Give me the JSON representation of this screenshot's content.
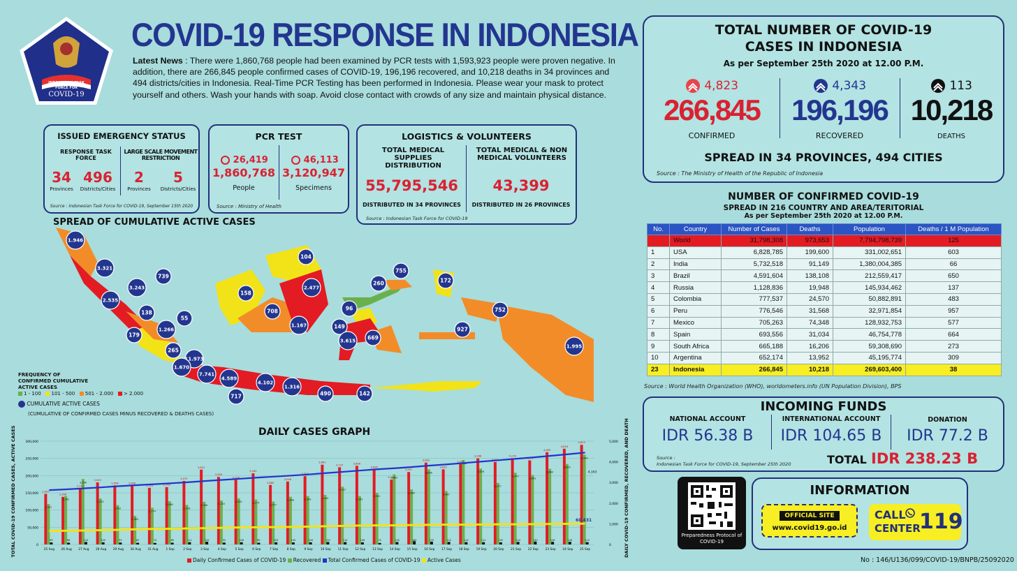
{
  "header": {
    "title": "COVID-19 RESPONSE IN INDONESIA",
    "logo_text_1": "INDONESIAN TASK",
    "logo_text_2": "FORCE FOR",
    "logo_text_3": "COVID-19"
  },
  "news": {
    "lead": "Latest News",
    "text": " : There were 1,860,768 people had been examined by PCR tests with 1,593,923 people were proven negative. In addition, there are 266,845 people confirmed cases of COVID-19, 196,196 recovered, and 10,218 deaths in 34 provinces and 494 districts/cities in Indonesia. Real-Time PCR Testing has been performed in Indonesia. Please wear your mask to protect yourself and others. Wash your hands with soap. Avoid close contact with crowds of any size and maintain physical distance."
  },
  "emergency": {
    "title": "ISSUED EMERGENCY STATUS",
    "col1_head": "RESPONSE TASK FORCE",
    "col2_head": "LARGE SCALE MOVEMENT RESTRICTION",
    "v1": "34",
    "l1": "Provinces",
    "v2": "496",
    "l2": "Districts/Cities",
    "v3": "2",
    "l3": "Provinces",
    "v4": "5",
    "l4": "Districts/Cities",
    "source": "Source : Indonesian Task Force for COVID-19, September 15th 2020"
  },
  "pcr": {
    "title": "PCR TEST",
    "inc1": "26,419",
    "val1": "1,860,768",
    "lbl1": "People",
    "inc2": "46,113",
    "val2": "3,120,947",
    "lbl2": "Specimens",
    "source": "Source : Ministry of Health"
  },
  "logistics": {
    "title": "LOGISTICS & VOLUNTEERS",
    "h1": "TOTAL MEDICAL SUPPLIES DISTRIBUTION",
    "v1": "55,795,546",
    "f1": "DISTRIBUTED IN 34 PROVINCES",
    "h2": "TOTAL MEDICAL & NON MEDICAL VOLUNTEERS",
    "v2": "43,399",
    "f2": "DISTRIBUTED IN 26 PROVINCES",
    "source": "Source : Indonesian Task Force for COVID-19"
  },
  "map": {
    "title": "SPREAD OF CUMULATIVE ACTIVE CASES",
    "legend_title": "FREQUENCY OF CONFIRMED CUMULATIVE ACTIVE CASES",
    "legend": [
      {
        "label": "1 - 100",
        "color": "#6ab04c"
      },
      {
        "label": "101 - 500",
        "color": "#f2e318"
      },
      {
        "label": "501 - 2.000",
        "color": "#f28c28"
      },
      {
        "label": "> 2.000",
        "color": "#e31b23"
      }
    ],
    "circle_legend": "CUMULATIVE ACTIVE CASES",
    "circle_legend_sub": "(CUMULATIVE OF CONFIRMED CASES MINUS RECOVERED & DEATHS CASES)",
    "markers": [
      "1.946",
      "3.321",
      "739",
      "3.243",
      "2.535",
      "138",
      "55",
      "1.266",
      "179",
      "265",
      "11.973",
      "1.670",
      "7.741",
      "4.589",
      "4.102",
      "1.316",
      "717",
      "490",
      "142",
      "158",
      "104",
      "708",
      "2.477",
      "1.167",
      "96",
      "149",
      "3.615",
      "669",
      "260",
      "755",
      "172",
      "752",
      "927",
      "1.995"
    ]
  },
  "graph": {
    "title": "DAILY CASES GRAPH",
    "y_left_label": "TOTAL COVID-19 CONFIRMED CASES, ACTIVE CASES",
    "y_right_label": "DAILY COVID-19 CONFIRMED, RECOVERED, AND DEATH",
    "y_left_ticks": [
      "300,000",
      "250,000",
      "200,000",
      "150,000",
      "100,000",
      "50,000",
      "0"
    ],
    "y_right_ticks": [
      "5,000",
      "4,000",
      "3,000",
      "2,000",
      "1,000",
      "0"
    ],
    "legend": [
      "Daily Confirmed Cases of COVID-19",
      "Recovered",
      "Total Confirmed Cases of COVID-19",
      "Active Cases"
    ],
    "active_label": "60,431",
    "last_recovered_label": "4,343"
  },
  "chart_data": {
    "type": "bar",
    "title": "DAILY CASES GRAPH",
    "categories": [
      "25 Aug",
      "26 Aug",
      "27 Aug",
      "28 Aug",
      "29 Aug",
      "30 Aug",
      "31 Aug",
      "1 Sep",
      "2 Sep",
      "3 Sep",
      "4 Sep",
      "5 Sep",
      "6 Sep",
      "7 Sep",
      "8 Sep",
      "9 Sep",
      "10 Sep",
      "11 Sep",
      "12 Sep",
      "13 Sep",
      "14 Sep",
      "15 Sep",
      "16 Sep",
      "17 Sep",
      "18 Sep",
      "19 Sep",
      "20 Sep",
      "21 Sep",
      "22 Sep",
      "23 Sep",
      "24 Sep",
      "25 Sep"
    ],
    "series": [
      {
        "name": "Daily Confirmed Cases of COVID-19",
        "axis": "right",
        "values": [
          2447,
          2306,
          2719,
          3003,
          2858,
          2858,
          2743,
          2775,
          3075,
          3622,
          3269,
          3128,
          3444,
          2880,
          3046,
          3307,
          3861,
          3737,
          3806,
          3636,
          3141,
          3507,
          3963,
          3635,
          3891,
          4168,
          3989,
          4176,
          4071,
          4465,
          4634,
          4823
        ]
      },
      {
        "name": "Recovered",
        "axis": "right",
        "values": [
          1957,
          2342,
          3166,
          2225,
          1902,
          1383,
          1774,
          2098,
          1916,
          2066,
          2130,
          2230,
          2174,
          2077,
          2308,
          2342,
          2400,
          2797,
          2341,
          2502,
          3393,
          2660,
          3636,
          2585,
          4088,
          3676,
          2977,
          3470,
          3361,
          3660,
          3895,
          4343
        ]
      },
      {
        "name": "Deaths",
        "axis": "right",
        "values": [
          99,
          86,
          120,
          105,
          92,
          82,
          74,
          86,
          111,
          134,
          92,
          108,
          85,
          105,
          100,
          106,
          120,
          114,
          106,
          73,
          118,
          160,
          135,
          122,
          114,
          112,
          105,
          124,
          140,
          128,
          128,
          113
        ]
      },
      {
        "name": "Total Confirmed Cases of COVID-19",
        "axis": "left",
        "values": [
          157859,
          160165,
          162884,
          165887,
          169195,
          172053,
          174796,
          177571,
          180646,
          184268,
          187537,
          190665,
          194109,
          196989,
          200035,
          203342,
          207203,
          210940,
          214746,
          218382,
          221523,
          225030,
          228993,
          232628,
          236519,
          240687,
          244676,
          248852,
          252923,
          257388,
          262022,
          266845
        ]
      },
      {
        "name": "Active Cases",
        "axis": "left",
        "values": [
          39000,
          40000,
          40500,
          41500,
          42500,
          44000,
          45000,
          45500,
          46500,
          47500,
          48500,
          49500,
          50000,
          50500,
          51000,
          52000,
          53000,
          54000,
          55000,
          55500,
          55500,
          56500,
          57000,
          57500,
          57500,
          58000,
          58500,
          58500,
          59000,
          59500,
          60000,
          60431
        ]
      }
    ],
    "ylim_left": [
      0,
      300000
    ],
    "ylim_right": [
      0,
      5000
    ],
    "legend_position": "bottom"
  },
  "totals": {
    "title1": "TOTAL NUMBER OF COVID-19",
    "title2": "CASES IN INDONESIA",
    "asof": "As per September 25th 2020 at 12.00 P.M.",
    "confirmed_inc": "4,823",
    "confirmed": "266,845",
    "confirmed_lbl": "CONFIRMED",
    "recovered_inc": "4,343",
    "recovered": "196,196",
    "recovered_lbl": "RECOVERED",
    "deaths_inc": "113",
    "deaths": "10,218",
    "deaths_lbl": "DEATHS",
    "spread": "SPREAD IN 34 PROVINCES, 494 CITIES",
    "source": "Source : The Ministry of Health of the Republic of Indonesia"
  },
  "world": {
    "title": "NUMBER OF CONFIRMED COVID-19",
    "subtitle": "SPREAD IN 216 COUNTRY AND AREA/TERITORIAL",
    "asof": "As per September 25th 2020 at 12.00 P.M.",
    "headers": [
      "No.",
      "Country",
      "Number of Cases",
      "Deaths",
      "Population",
      "Deaths / 1 M Population"
    ],
    "rows": [
      [
        "",
        "World",
        "31,798,308",
        "973,653",
        "7,794,798,739",
        "125"
      ],
      [
        "1",
        "USA",
        "6,828,785",
        "199,600",
        "331,002,651",
        "603"
      ],
      [
        "2",
        "India",
        "5,732,518",
        "91,149",
        "1,380,004,385",
        "66"
      ],
      [
        "3",
        "Brazil",
        "4,591,604",
        "138,108",
        "212,559,417",
        "650"
      ],
      [
        "4",
        "Russia",
        "1,128,836",
        "19,948",
        "145,934,462",
        "137"
      ],
      [
        "5",
        "Colombia",
        "777,537",
        "24,570",
        "50,882,891",
        "483"
      ],
      [
        "6",
        "Peru",
        "776,546",
        "31,568",
        "32,971,854",
        "957"
      ],
      [
        "7",
        "Mexico",
        "705,263",
        "74,348",
        "128,932,753",
        "577"
      ],
      [
        "8",
        "Spain",
        "693,556",
        "31,034",
        "46,754,778",
        "664"
      ],
      [
        "9",
        "South Africa",
        "665,188",
        "16,206",
        "59,308,690",
        "273"
      ],
      [
        "10",
        "Argentina",
        "652,174",
        "13,952",
        "45,195,774",
        "309"
      ],
      [
        "23",
        "Indonesia",
        "266,845",
        "10,218",
        "269,603,400",
        "38"
      ]
    ],
    "source": "Source : World Health Organization (WHO), worldometers.info (UN Population Division), BPS"
  },
  "funds": {
    "title": "INCOMING FUNDS",
    "h1": "NATIONAL ACCOUNT",
    "v1": "IDR 56.38 B",
    "h2": "INTERNATIONAL ACCOUNT",
    "v2": "IDR 104.65 B",
    "h3": "DONATION",
    "v3": "IDR 77.2 B",
    "source1": "Source :",
    "source2": "Indonesian Task Force for COVID-19, September 25th 2020",
    "total_label": "TOTAL",
    "total_value": "IDR 238.23 B"
  },
  "qr": {
    "caption": "Preparedness Protocol of COVID-19"
  },
  "info": {
    "title": "INFORMATION",
    "site_label": "OFFICIAL SITE",
    "site_url": "www.covid19.go.id",
    "call_label1": "CALL",
    "call_label2": "CENTER",
    "call_number": "119"
  },
  "footer": {
    "docno": "No : 146/U136/099/COVID-19/BNPB/25092020"
  }
}
